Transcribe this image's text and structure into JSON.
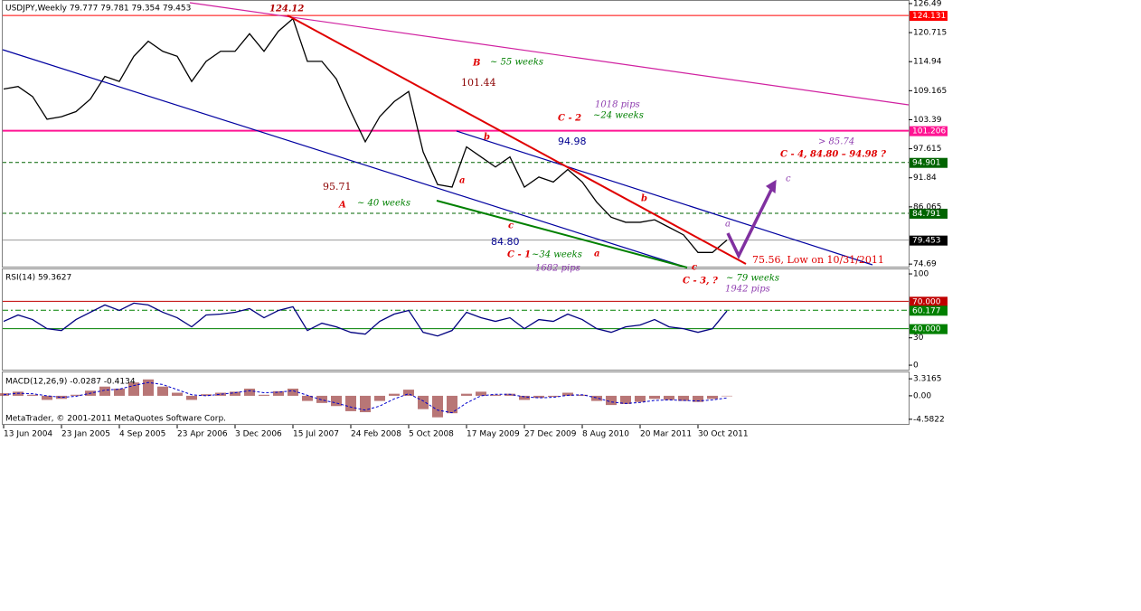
{
  "chart_data": [
    {
      "type": "line",
      "title": "USDJPY,Weekly  79.777 79.781 79.354 79.453",
      "color": "#000000",
      "categories": [
        "13 Jun 2004",
        null,
        null,
        null,
        "23 Jan 2005",
        null,
        null,
        null,
        "4 Sep 2005",
        null,
        null,
        null,
        "23 Apr 2006",
        null,
        null,
        null,
        "3 Dec 2006",
        null,
        null,
        null,
        "15 Jul 2007",
        null,
        null,
        null,
        "24 Feb 2008",
        null,
        null,
        null,
        "5 Oct 2008",
        null,
        null,
        null,
        "17 May 2009",
        null,
        null,
        null,
        "27 Dec 2009",
        null,
        null,
        null,
        "8 Aug 2010",
        null,
        null,
        null,
        "20 Mar 2011",
        null,
        null,
        null,
        "30 Oct 2011",
        null,
        null
      ],
      "values": [
        109.5,
        110,
        108,
        103.5,
        104,
        105,
        107.5,
        112,
        111,
        116,
        119,
        117,
        116,
        111,
        115,
        117,
        117,
        120.5,
        117,
        121,
        123.5,
        115,
        115,
        111.5,
        105,
        99,
        104,
        107,
        109,
        97,
        90.5,
        90,
        98,
        96,
        94,
        96,
        90,
        92,
        91,
        93.5,
        91,
        87,
        84,
        83,
        83,
        83.5,
        82,
        80.5,
        77,
        77,
        79.453
      ],
      "ylim": [
        74.0,
        127.2
      ],
      "yticks": [
        126.49,
        120.715,
        114.94,
        109.165,
        103.39,
        97.615,
        91.84,
        86.065,
        74.69
      ],
      "levels": [
        {
          "value": 124.131,
          "color": "#ff0000"
        },
        {
          "value": 101.206,
          "color": "#ff1493"
        },
        {
          "value": 94.901,
          "color": "#006400"
        },
        {
          "value": 84.791,
          "color": "#006400"
        },
        {
          "value": 79.453,
          "color": "#000000"
        }
      ],
      "annotations": [
        "124.12",
        "B",
        "~ 55 weeks",
        "101.44",
        "1018  pips",
        "~24 weeks",
        "C - 2",
        "94.98",
        "> 85.74",
        "C - 4,   84.80 – 94.98 ?",
        "c",
        "b",
        "95.71",
        "a",
        "A",
        "~ 40 weeks",
        "c",
        "84.80",
        "C - 1",
        "~34 weeks",
        "1682  pips",
        "a",
        "b",
        "a",
        "75.56,  Low on 10/31/2011",
        "c",
        "C - 3,  ?",
        "~ 79 weeks",
        "1942  pips"
      ]
    },
    {
      "type": "line",
      "title": "RSI(14) 59.3627",
      "color": "#000080",
      "values": [
        48,
        55,
        50,
        40,
        38,
        50,
        58,
        66,
        60,
        68,
        66,
        58,
        52,
        42,
        55,
        56,
        58,
        62,
        52,
        60,
        64,
        38,
        46,
        42,
        36,
        34,
        48,
        56,
        60,
        36,
        32,
        38,
        58,
        52,
        48,
        52,
        40,
        50,
        48,
        56,
        50,
        40,
        36,
        42,
        44,
        50,
        42,
        40,
        36,
        40,
        59.3627
      ],
      "ylim": [
        -5.9,
        105
      ],
      "yticks": [
        100,
        30,
        0
      ],
      "levels": [
        {
          "value": 70,
          "label": "70.000",
          "color": "#c00000"
        },
        {
          "value": 60.177,
          "label": "60.177",
          "color": "#008000"
        },
        {
          "value": 40,
          "label": "40.000",
          "color": "#008000"
        }
      ]
    },
    {
      "type": "bar",
      "title": "MACD(12,26,9) -0.0287 -0.4134",
      "footer": "MetaTrader, © 2001-2011 MetaQuotes Software Corp.",
      "color": "#a04848",
      "signal_color": "#0000cd",
      "values": [
        0.5,
        0.8,
        0.2,
        -0.8,
        -0.6,
        0.2,
        1.0,
        1.8,
        1.4,
        2.6,
        3.2,
        1.8,
        0.6,
        -0.8,
        0.3,
        0.6,
        0.8,
        1.4,
        0.2,
        0.9,
        1.4,
        -1.0,
        -1.4,
        -2.0,
        -3.0,
        -3.2,
        -1.0,
        0.4,
        1.2,
        -2.6,
        -4.2,
        -3.4,
        0.4,
        0.8,
        0.2,
        0.4,
        -0.8,
        -0.4,
        -0.2,
        0.6,
        0.2,
        -1.0,
        -1.8,
        -1.6,
        -1.2,
        -0.6,
        -0.8,
        -1.0,
        -1.2,
        -0.6,
        -0.0287
      ],
      "signal": [
        0.2,
        0.5,
        0.4,
        0,
        -0.3,
        -0.1,
        0.5,
        1.1,
        1.3,
        2,
        2.6,
        2.2,
        1.2,
        0.2,
        0,
        0.3,
        0.6,
        1,
        0.6,
        0.7,
        1,
        0.1,
        -0.8,
        -1.4,
        -2.2,
        -2.8,
        -2,
        -0.6,
        0.4,
        -1,
        -2.8,
        -3.3,
        -1.4,
        0,
        0.3,
        0.3,
        -0.2,
        -0.4,
        -0.3,
        0.1,
        0.2,
        -0.4,
        -1.2,
        -1.5,
        -1.3,
        -0.9,
        -0.8,
        -0.9,
        -1,
        -0.8,
        -0.4134
      ],
      "ylim": [
        -5.66,
        4.57
      ],
      "yticks": [
        3.3165,
        {
          "value": 0,
          "label": "0.00"
        },
        -4.5822
      ]
    }
  ]
}
